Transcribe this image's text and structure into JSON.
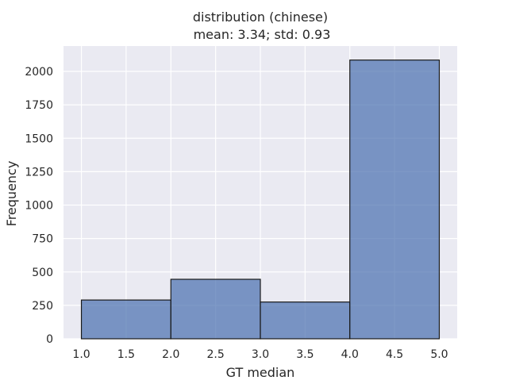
{
  "chart_data": {
    "type": "bar",
    "title": "distribution (chinese)",
    "subtitle": "mean: 3.34; std: 0.93",
    "xlabel": "GT median",
    "ylabel": "Frequency",
    "xlim": [
      0.8,
      5.2
    ],
    "ylim": [
      0,
      2190
    ],
    "xticks": [
      "1.0",
      "1.5",
      "2.0",
      "2.5",
      "3.0",
      "3.5",
      "4.0",
      "4.5",
      "5.0"
    ],
    "yticks": [
      "0",
      "250",
      "500",
      "750",
      "1000",
      "1250",
      "1500",
      "1750",
      "2000"
    ],
    "bins": [
      {
        "x0": 1.0,
        "x1": 2.0,
        "value": 290
      },
      {
        "x0": 2.0,
        "x1": 3.0,
        "value": 445
      },
      {
        "x0": 3.0,
        "x1": 4.0,
        "value": 275
      },
      {
        "x0": 4.0,
        "x1": 5.0,
        "value": 2085
      }
    ],
    "grid": true,
    "colors": {
      "bar_fill": "#4c72b0",
      "bar_edge": "#1a1a1a",
      "plot_background": "#eaeaf2",
      "grid": "#ffffff"
    }
  }
}
